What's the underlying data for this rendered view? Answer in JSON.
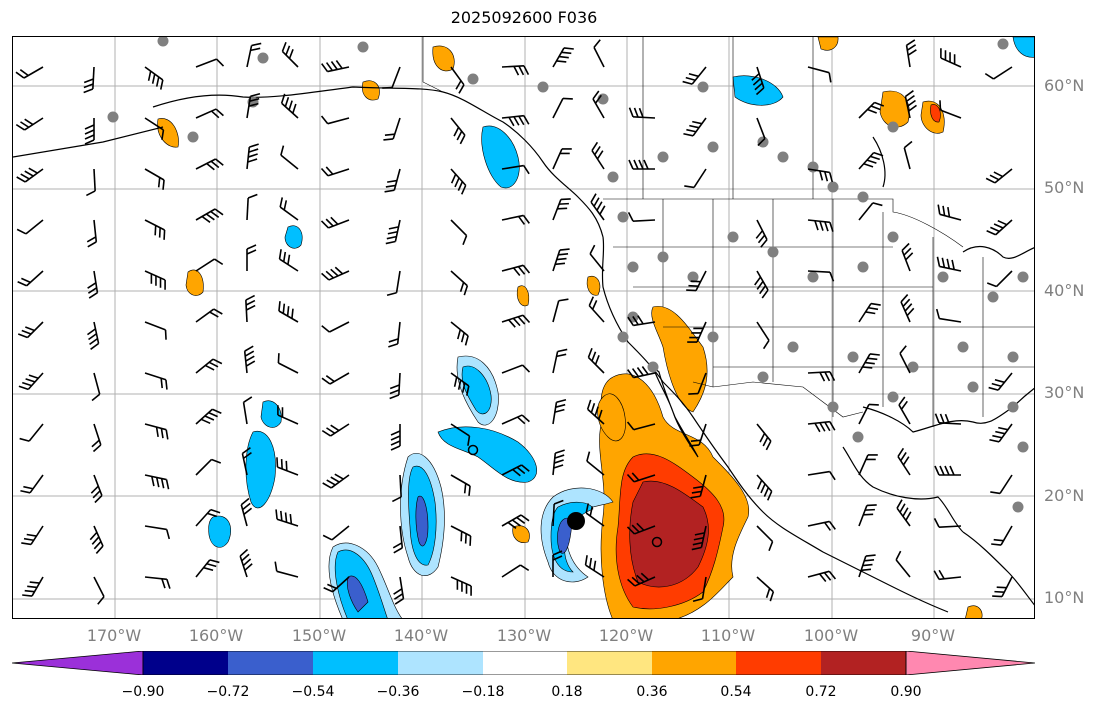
{
  "title": "2025092600 F036",
  "latitude_labels": [
    "60°N",
    "50°N",
    "40°N",
    "30°N",
    "20°N",
    "10°N"
  ],
  "longitude_labels": [
    "170°W",
    "160°W",
    "150°W",
    "140°W",
    "130°W",
    "120°W",
    "110°W",
    "100°W",
    "90°W"
  ],
  "colorbar": {
    "tick_labels": [
      "−0.90",
      "−0.72",
      "−0.54",
      "−0.36",
      "−0.18",
      "0.18",
      "0.36",
      "0.54",
      "0.72",
      "0.90"
    ],
    "colors": [
      "#9b30d9",
      "#00008b",
      "#3a5fcd",
      "#00bfff",
      "#aee4ff",
      "#ffffff",
      "#ffe680",
      "#ffa500",
      "#ff3c00",
      "#b22222",
      "#ff88b0"
    ]
  },
  "map": {
    "extent_lon": [
      -180,
      -80
    ],
    "extent_lat": [
      8,
      65
    ],
    "grid": true,
    "features": [
      "coastlines",
      "country borders",
      "state borders",
      "wind barbs",
      "station dots",
      "filled contours"
    ]
  }
}
